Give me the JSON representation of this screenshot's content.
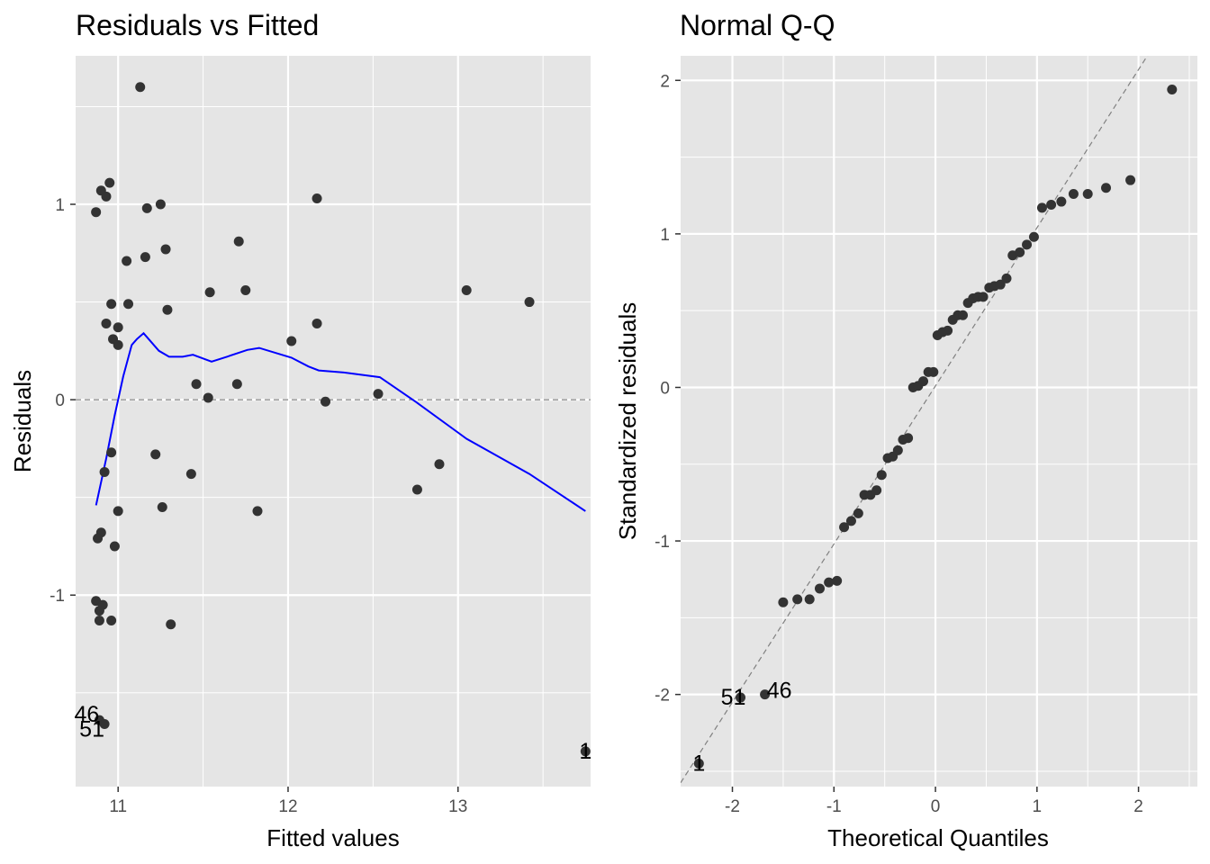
{
  "chart_data": [
    {
      "type": "scatter",
      "title": "Residuals vs Fitted",
      "xlabel": "Fitted values",
      "ylabel": "Residuals",
      "xlim": [
        10.75,
        13.78
      ],
      "ylim": [
        -1.98,
        1.76
      ],
      "xticks": [
        11,
        12,
        13
      ],
      "xtick_labels": [
        "11",
        "12",
        "13"
      ],
      "xticks_minor": [
        11.5,
        12.5,
        13.5
      ],
      "yticks": [
        -1,
        0,
        1
      ],
      "ytick_labels": [
        "-1",
        "0",
        "1"
      ],
      "yticks_minor": [
        -1.5,
        -0.5,
        0.5,
        1.5
      ],
      "grid": true,
      "reference_line": {
        "y": 0,
        "style": "dashed",
        "color": "#808080"
      },
      "smooth_color": "#0000ff",
      "point_color": "#333333",
      "points": [
        {
          "x": 11.13,
          "y": 1.6
        },
        {
          "x": 10.95,
          "y": 1.11
        },
        {
          "x": 10.9,
          "y": 1.07
        },
        {
          "x": 10.93,
          "y": 1.04
        },
        {
          "x": 10.87,
          "y": 0.96
        },
        {
          "x": 11.25,
          "y": 1.0
        },
        {
          "x": 11.17,
          "y": 0.98
        },
        {
          "x": 12.17,
          "y": 1.03
        },
        {
          "x": 11.71,
          "y": 0.81
        },
        {
          "x": 11.28,
          "y": 0.77
        },
        {
          "x": 11.16,
          "y": 0.73
        },
        {
          "x": 11.05,
          "y": 0.71
        },
        {
          "x": 13.05,
          "y": 0.56
        },
        {
          "x": 11.75,
          "y": 0.56
        },
        {
          "x": 11.54,
          "y": 0.55
        },
        {
          "x": 13.42,
          "y": 0.5
        },
        {
          "x": 10.96,
          "y": 0.49
        },
        {
          "x": 11.06,
          "y": 0.49
        },
        {
          "x": 11.29,
          "y": 0.46
        },
        {
          "x": 10.93,
          "y": 0.39
        },
        {
          "x": 12.17,
          "y": 0.39
        },
        {
          "x": 11.0,
          "y": 0.37
        },
        {
          "x": 10.97,
          "y": 0.31
        },
        {
          "x": 11.0,
          "y": 0.28
        },
        {
          "x": 12.02,
          "y": 0.3
        },
        {
          "x": 11.46,
          "y": 0.08
        },
        {
          "x": 11.7,
          "y": 0.08
        },
        {
          "x": 11.53,
          "y": 0.01
        },
        {
          "x": 12.53,
          "y": 0.03
        },
        {
          "x": 12.22,
          "y": -0.01
        },
        {
          "x": 10.96,
          "y": -0.27
        },
        {
          "x": 11.22,
          "y": -0.28
        },
        {
          "x": 12.89,
          "y": -0.33
        },
        {
          "x": 10.92,
          "y": -0.37
        },
        {
          "x": 11.43,
          "y": -0.38
        },
        {
          "x": 12.76,
          "y": -0.46
        },
        {
          "x": 11.26,
          "y": -0.55
        },
        {
          "x": 11.0,
          "y": -0.57
        },
        {
          "x": 11.82,
          "y": -0.57
        },
        {
          "x": 10.9,
          "y": -0.68
        },
        {
          "x": 10.88,
          "y": -0.71
        },
        {
          "x": 10.98,
          "y": -0.75
        },
        {
          "x": 10.87,
          "y": -1.03
        },
        {
          "x": 10.91,
          "y": -1.05
        },
        {
          "x": 10.89,
          "y": -1.08
        },
        {
          "x": 10.89,
          "y": -1.13
        },
        {
          "x": 10.96,
          "y": -1.13
        },
        {
          "x": 11.31,
          "y": -1.15
        },
        {
          "x": 10.89,
          "y": -1.64
        },
        {
          "x": 10.92,
          "y": -1.66
        },
        {
          "x": 13.75,
          "y": -1.8
        }
      ],
      "labeled_points": [
        {
          "label": "46",
          "x": 10.89,
          "y": -1.64
        },
        {
          "label": "51",
          "x": 10.92,
          "y": -1.66
        },
        {
          "label": "1",
          "x": 13.75,
          "y": -1.8
        }
      ],
      "smooth": [
        {
          "x": 10.87,
          "y": -0.54
        },
        {
          "x": 10.93,
          "y": -0.3
        },
        {
          "x": 10.98,
          "y": -0.08
        },
        {
          "x": 11.03,
          "y": 0.12
        },
        {
          "x": 11.08,
          "y": 0.28
        },
        {
          "x": 11.11,
          "y": 0.31
        },
        {
          "x": 11.15,
          "y": 0.34
        },
        {
          "x": 11.2,
          "y": 0.29
        },
        {
          "x": 11.24,
          "y": 0.25
        },
        {
          "x": 11.3,
          "y": 0.22
        },
        {
          "x": 11.38,
          "y": 0.22
        },
        {
          "x": 11.44,
          "y": 0.23
        },
        {
          "x": 11.55,
          "y": 0.195
        },
        {
          "x": 11.64,
          "y": 0.22
        },
        {
          "x": 11.76,
          "y": 0.255
        },
        {
          "x": 11.83,
          "y": 0.265
        },
        {
          "x": 12.02,
          "y": 0.215
        },
        {
          "x": 12.12,
          "y": 0.17
        },
        {
          "x": 12.18,
          "y": 0.15
        },
        {
          "x": 12.32,
          "y": 0.14
        },
        {
          "x": 12.54,
          "y": 0.115
        },
        {
          "x": 12.75,
          "y": -0.01
        },
        {
          "x": 13.05,
          "y": -0.2
        },
        {
          "x": 13.42,
          "y": -0.38
        },
        {
          "x": 13.75,
          "y": -0.57
        }
      ]
    },
    {
      "type": "scatter",
      "title": "Normal Q-Q",
      "xlabel": "Theoretical Quantiles",
      "ylabel": "Standardized residuals",
      "xlim": [
        -2.51,
        2.58
      ],
      "ylim": [
        -2.6,
        2.16
      ],
      "xticks": [
        -2,
        -1,
        0,
        1,
        2
      ],
      "xtick_labels": [
        "-2",
        "-1",
        "0",
        "1",
        "2"
      ],
      "xticks_minor": [
        -1.5,
        -0.5,
        0.5,
        1.5,
        2.5
      ],
      "yticks": [
        -2,
        -1,
        0,
        1,
        2
      ],
      "ytick_labels": [
        "-2",
        "-1",
        "0",
        "1",
        "2"
      ],
      "yticks_minor": [
        -2.5,
        -1.5,
        -0.5,
        0.5,
        1.5
      ],
      "grid": true,
      "reference_line": {
        "slope": 1.03,
        "intercept": 0.01,
        "style": "dashed",
        "color": "#808080"
      },
      "point_color": "#333333",
      "points": [
        {
          "x": -2.33,
          "y": -2.45
        },
        {
          "x": -1.92,
          "y": -2.02
        },
        {
          "x": -1.68,
          "y": -2.0
        },
        {
          "x": -1.5,
          "y": -1.4
        },
        {
          "x": -1.36,
          "y": -1.38
        },
        {
          "x": -1.24,
          "y": -1.38
        },
        {
          "x": -1.14,
          "y": -1.31
        },
        {
          "x": -1.05,
          "y": -1.27
        },
        {
          "x": -0.97,
          "y": -1.26
        },
        {
          "x": -0.9,
          "y": -0.91
        },
        {
          "x": -0.83,
          "y": -0.87
        },
        {
          "x": -0.76,
          "y": -0.82
        },
        {
          "x": -0.7,
          "y": -0.7
        },
        {
          "x": -0.64,
          "y": -0.7
        },
        {
          "x": -0.58,
          "y": -0.67
        },
        {
          "x": -0.53,
          "y": -0.57
        },
        {
          "x": -0.47,
          "y": -0.46
        },
        {
          "x": -0.42,
          "y": -0.45
        },
        {
          "x": -0.37,
          "y": -0.41
        },
        {
          "x": -0.32,
          "y": -0.34
        },
        {
          "x": -0.27,
          "y": -0.33
        },
        {
          "x": -0.22,
          "y": 0.0
        },
        {
          "x": -0.17,
          "y": 0.01
        },
        {
          "x": -0.12,
          "y": 0.04
        },
        {
          "x": -0.07,
          "y": 0.1
        },
        {
          "x": -0.02,
          "y": 0.1
        },
        {
          "x": 0.02,
          "y": 0.34
        },
        {
          "x": 0.07,
          "y": 0.36
        },
        {
          "x": 0.12,
          "y": 0.37
        },
        {
          "x": 0.17,
          "y": 0.44
        },
        {
          "x": 0.22,
          "y": 0.47
        },
        {
          "x": 0.27,
          "y": 0.47
        },
        {
          "x": 0.32,
          "y": 0.55
        },
        {
          "x": 0.37,
          "y": 0.58
        },
        {
          "x": 0.42,
          "y": 0.59
        },
        {
          "x": 0.47,
          "y": 0.59
        },
        {
          "x": 0.53,
          "y": 0.65
        },
        {
          "x": 0.58,
          "y": 0.66
        },
        {
          "x": 0.64,
          "y": 0.67
        },
        {
          "x": 0.7,
          "y": 0.71
        },
        {
          "x": 0.76,
          "y": 0.86
        },
        {
          "x": 0.83,
          "y": 0.88
        },
        {
          "x": 0.9,
          "y": 0.93
        },
        {
          "x": 0.97,
          "y": 0.98
        },
        {
          "x": 1.05,
          "y": 1.17
        },
        {
          "x": 1.14,
          "y": 1.19
        },
        {
          "x": 1.24,
          "y": 1.21
        },
        {
          "x": 1.36,
          "y": 1.26
        },
        {
          "x": 1.5,
          "y": 1.26
        },
        {
          "x": 1.68,
          "y": 1.3
        },
        {
          "x": 1.92,
          "y": 1.35
        },
        {
          "x": 2.33,
          "y": 1.94
        }
      ],
      "labeled_points": [
        {
          "label": "51",
          "x": -1.92,
          "y": -2.02
        },
        {
          "label": "46",
          "x": -1.68,
          "y": -2.0
        },
        {
          "label": "1",
          "x": -2.33,
          "y": -2.45
        }
      ]
    }
  ]
}
